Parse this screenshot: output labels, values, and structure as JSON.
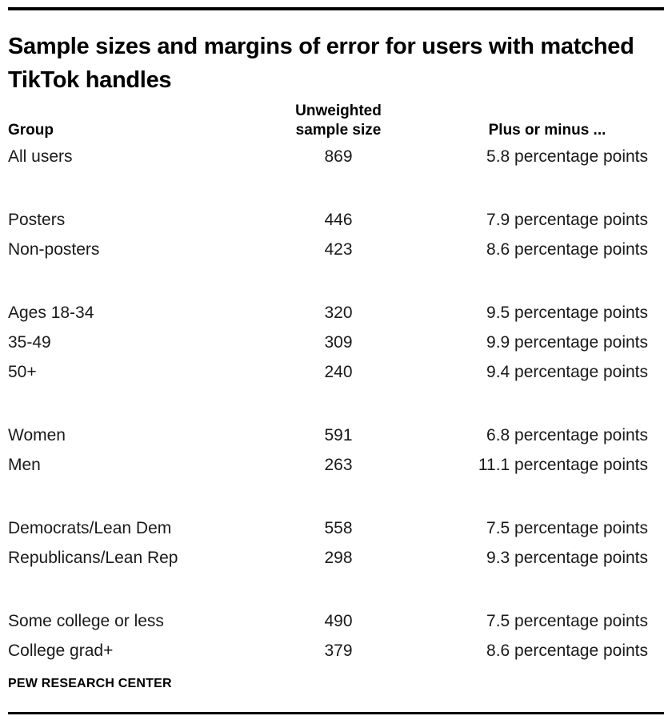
{
  "colors": {
    "background": "#ffffff",
    "text": "#000000",
    "rule": "#000000"
  },
  "footer": {
    "source_label": "PEW RESEARCH CENTER"
  },
  "chart_data": {
    "type": "table",
    "title": "Sample sizes and margins of error for users with matched TikTok handles",
    "columns": {
      "group": "Group",
      "sample": "Unweighted sample size",
      "moe": "Plus or minus ..."
    },
    "row_groups": [
      {
        "rows": [
          {
            "group": "All users",
            "sample": 869,
            "moe": "5.8 percentage points"
          }
        ]
      },
      {
        "rows": [
          {
            "group": "Posters",
            "sample": 446,
            "moe": "7.9 percentage points"
          },
          {
            "group": "Non-posters",
            "sample": 423,
            "moe": "8.6 percentage points"
          }
        ]
      },
      {
        "rows": [
          {
            "group": "Ages 18-34",
            "sample": 320,
            "moe": "9.5 percentage points"
          },
          {
            "group": "35-49",
            "sample": 309,
            "moe": "9.9 percentage points"
          },
          {
            "group": "50+",
            "sample": 240,
            "moe": "9.4 percentage points"
          }
        ]
      },
      {
        "rows": [
          {
            "group": "Women",
            "sample": 591,
            "moe": "6.8 percentage points"
          },
          {
            "group": "Men",
            "sample": 263,
            "moe": "11.1 percentage points"
          }
        ]
      },
      {
        "rows": [
          {
            "group": "Democrats/Lean Dem",
            "sample": 558,
            "moe": "7.5 percentage points"
          },
          {
            "group": "Republicans/Lean Rep",
            "sample": 298,
            "moe": "9.3 percentage points"
          }
        ]
      },
      {
        "rows": [
          {
            "group": "Some college or less",
            "sample": 490,
            "moe": "7.5 percentage points"
          },
          {
            "group": "College grad+",
            "sample": 379,
            "moe": "8.6 percentage points"
          }
        ]
      }
    ],
    "source": "PEW RESEARCH CENTER"
  }
}
